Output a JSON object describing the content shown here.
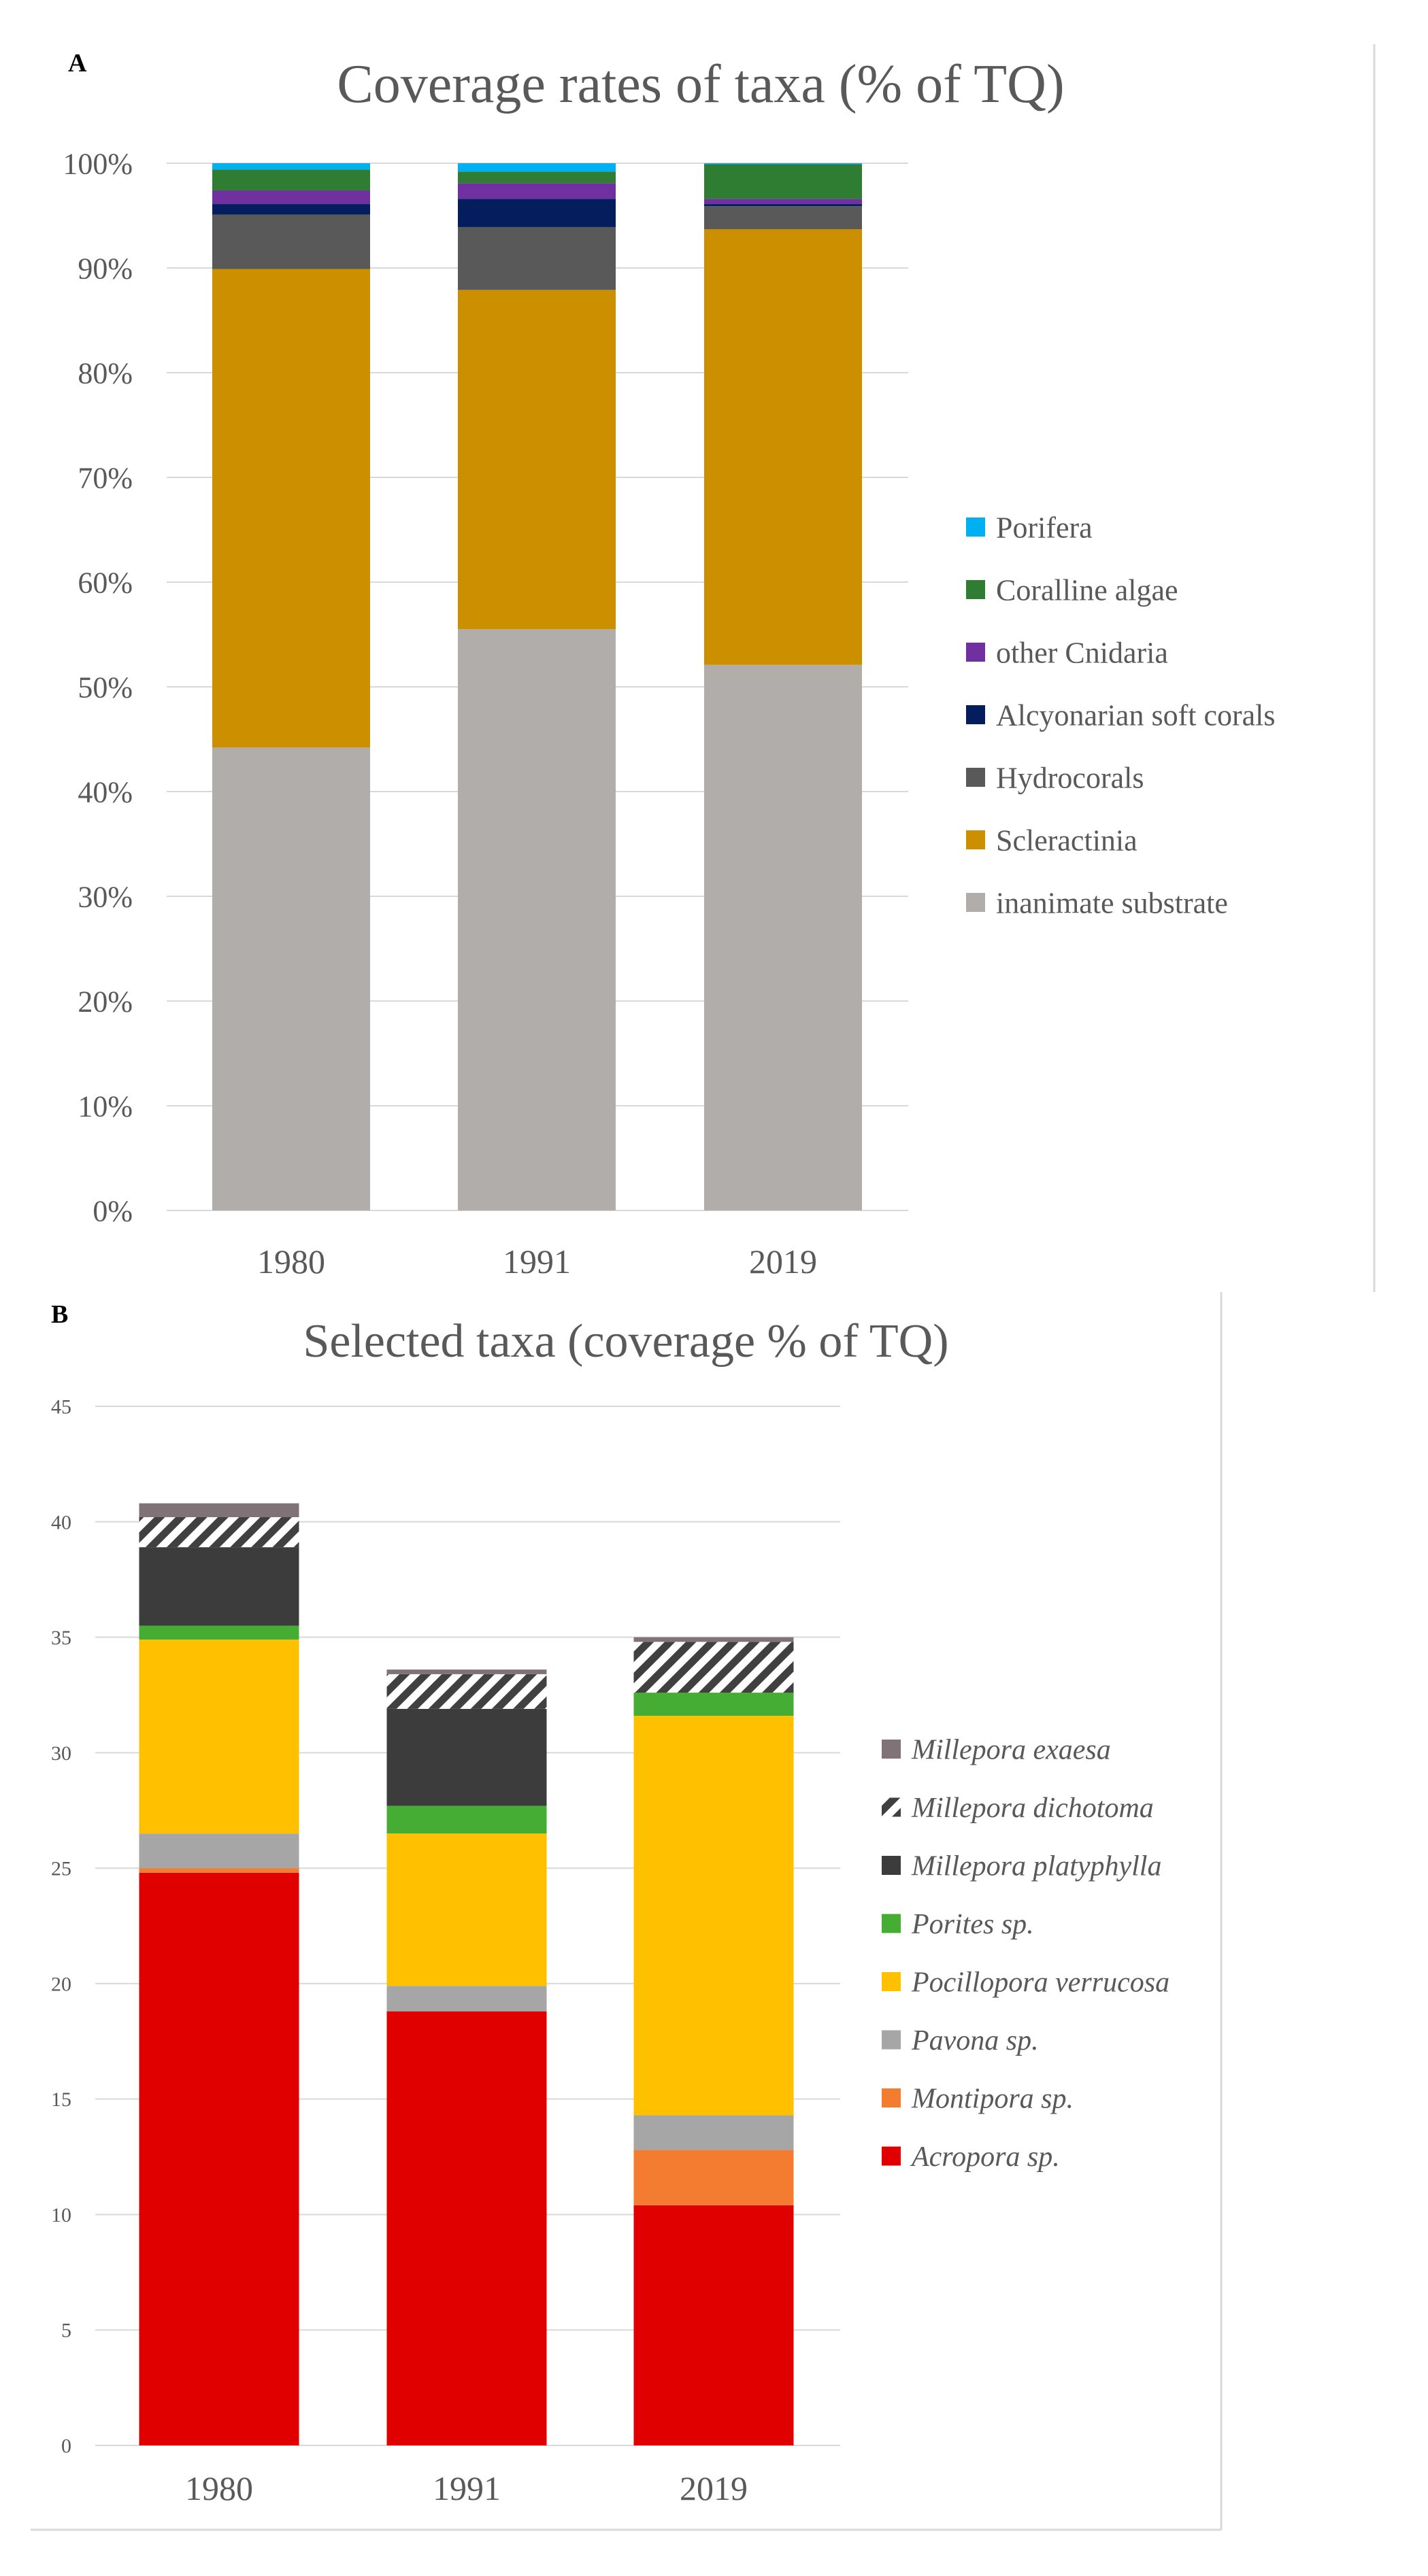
{
  "chart_data": [
    {
      "panel_label": "A",
      "type": "bar",
      "stacked": true,
      "title": "Coverage rates of taxa (% of TQ)",
      "categories": [
        "1980",
        "1991",
        "2019"
      ],
      "ylim": [
        0,
        100
      ],
      "yticks": [
        0,
        10,
        20,
        30,
        40,
        50,
        60,
        70,
        80,
        90,
        100
      ],
      "ytick_labels": [
        "0%",
        "10%",
        "20%",
        "30%",
        "40%",
        "50%",
        "60%",
        "70%",
        "80%",
        "90%",
        "100%"
      ],
      "grid": true,
      "legend_position": "right",
      "series": [
        {
          "name": "inanimate substrate",
          "color": "#b1adaa",
          "values": [
            44.2,
            55.5,
            52.1
          ]
        },
        {
          "name": "Scleractinia",
          "color": "#cc8f00",
          "values": [
            45.7,
            32.4,
            41.6
          ]
        },
        {
          "name": "Hydrocorals",
          "color": "#595959",
          "values": [
            5.2,
            6.0,
            2.2
          ]
        },
        {
          "name": "Alcyonarian soft corals",
          "color": "#041e5d",
          "values": [
            1.0,
            2.7,
            0.2
          ]
        },
        {
          "name": "other Cnidaria",
          "color": "#7030a0",
          "values": [
            1.3,
            1.5,
            0.5
          ]
        },
        {
          "name": "Coralline algae",
          "color": "#2e7d32",
          "values": [
            2.0,
            1.1,
            3.3
          ]
        },
        {
          "name": "Porifera",
          "color": "#00b0f0",
          "values": [
            0.6,
            0.8,
            0.1
          ]
        }
      ]
    },
    {
      "panel_label": "B",
      "type": "bar",
      "stacked": true,
      "title": "Selected taxa (coverage % of TQ)",
      "categories": [
        "1980",
        "1991",
        "2019"
      ],
      "ylim": [
        0,
        45
      ],
      "yticks": [
        0,
        5,
        10,
        15,
        20,
        25,
        30,
        35,
        40,
        45
      ],
      "ytick_labels": [
        "0",
        "5",
        "10",
        "15",
        "20",
        "25",
        "30",
        "35",
        "40",
        "45"
      ],
      "grid": true,
      "legend_position": "right",
      "series": [
        {
          "name": "Acropora sp.",
          "color": "#e00000",
          "values": [
            24.8,
            18.8,
            10.4
          ]
        },
        {
          "name": "Montipora sp.",
          "color": "#f47c30",
          "values": [
            0.2,
            0.0,
            2.4
          ]
        },
        {
          "name": "Pavona sp.",
          "color": "#a6a6a6",
          "values": [
            1.5,
            1.1,
            1.5
          ]
        },
        {
          "name": "Pocillopora verrucosa",
          "color": "#ffc000",
          "values": [
            8.4,
            6.6,
            17.3
          ]
        },
        {
          "name": "Porites sp.",
          "color": "#45ac34",
          "values": [
            0.6,
            1.2,
            1.0
          ]
        },
        {
          "name": "Millepora platyphylla",
          "color": "#3c3c3c",
          "values": [
            3.4,
            4.2,
            0.0
          ]
        },
        {
          "name": "Millepora dichotoma",
          "color": "#404040",
          "pattern": "hatched",
          "values": [
            1.3,
            1.5,
            2.2
          ]
        },
        {
          "name": "Millepora exaesa",
          "color": "#7f7378",
          "values": [
            0.6,
            0.2,
            0.2
          ]
        }
      ]
    }
  ]
}
